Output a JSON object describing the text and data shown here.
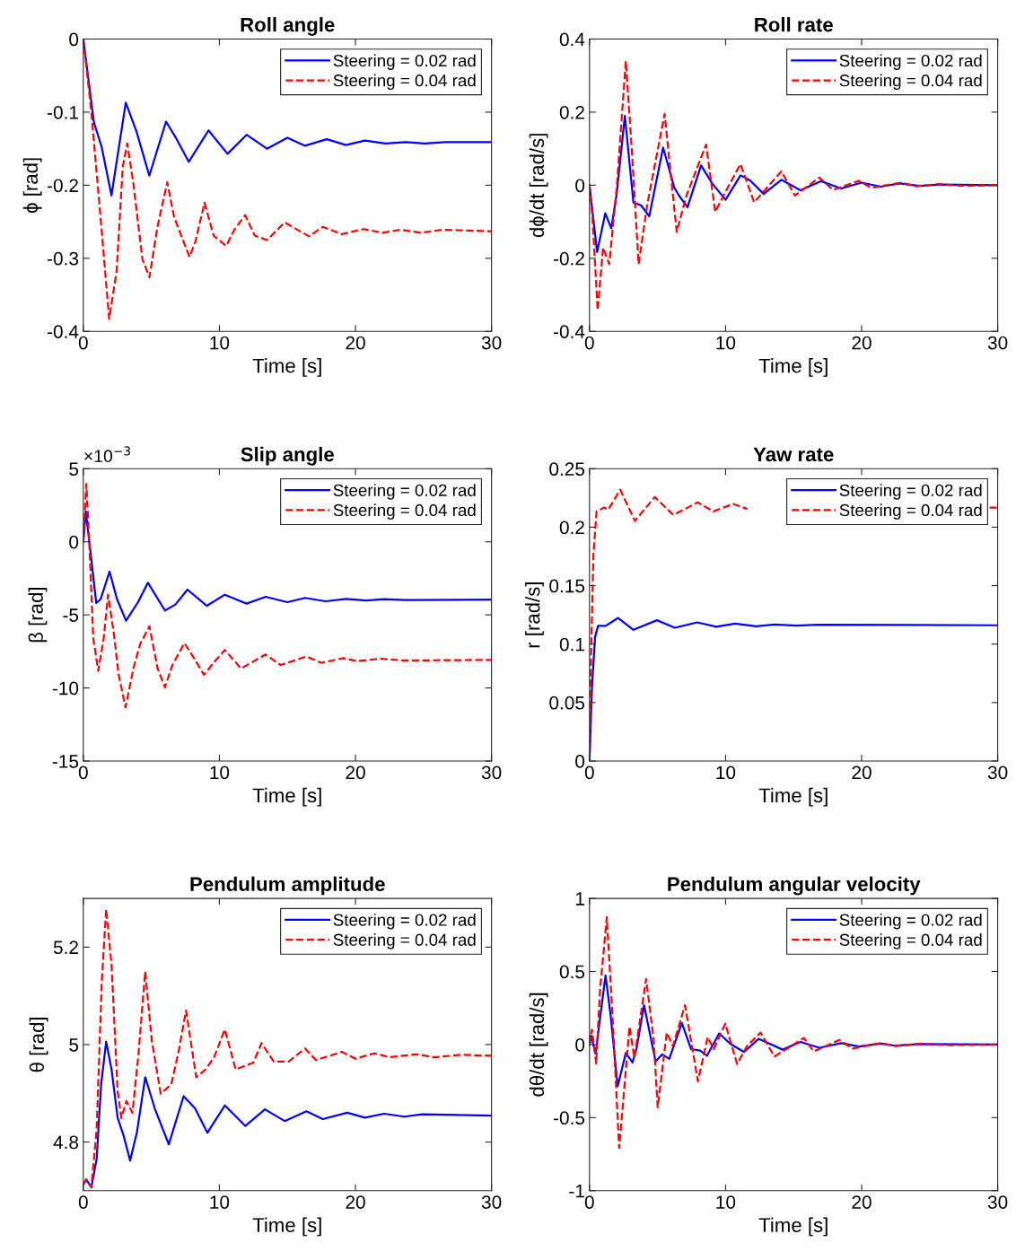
{
  "chart_data": [
    {
      "type": "line",
      "title": "Roll angle",
      "xlabel": "Time [s]",
      "ylabel": "ϕ [rad]",
      "xlim": [
        0,
        30
      ],
      "xticks": [
        0,
        10,
        20,
        30
      ],
      "ylim": [
        -0.4,
        0
      ],
      "yticks": [
        -0.4,
        -0.3,
        -0.2,
        -0.1,
        0
      ],
      "legend": "top right",
      "series": [
        {
          "name": "Steering = 0.02 rad",
          "color": "#0000ff",
          "line_style": "solid",
          "x": [
            0,
            0.78,
            1.34,
            2.07,
            3.12,
            3.9,
            4.85,
            6.08,
            6.8,
            7.75,
            9.2,
            10.6,
            12.0,
            13.5,
            15.0,
            16.3,
            17.9,
            19.3,
            20.7,
            22.2,
            23.7,
            25.1,
            26.6,
            30
          ],
          "values": [
            0,
            -0.114,
            -0.147,
            -0.214,
            -0.087,
            -0.126,
            -0.187,
            -0.113,
            -0.135,
            -0.168,
            -0.125,
            -0.157,
            -0.131,
            -0.15,
            -0.135,
            -0.146,
            -0.137,
            -0.145,
            -0.139,
            -0.143,
            -0.141,
            -0.143,
            -0.141,
            -0.141
          ]
        },
        {
          "name": "Steering = 0.04 rad",
          "color": "#ff0000",
          "line_style": "dashed",
          "x": [
            0,
            0.56,
            1.23,
            1.9,
            2.45,
            2.9,
            3.23,
            3.67,
            4.34,
            4.86,
            5.46,
            6.17,
            6.68,
            7.8,
            8.24,
            8.91,
            9.58,
            10.5,
            11.1,
            11.9,
            12.6,
            13.5,
            14.8,
            16.6,
            17.6,
            19.0,
            20.6,
            22.0,
            23.3,
            24.8,
            26.4,
            30
          ],
          "values": [
            0,
            -0.094,
            -0.236,
            -0.383,
            -0.317,
            -0.175,
            -0.143,
            -0.196,
            -0.301,
            -0.326,
            -0.256,
            -0.196,
            -0.244,
            -0.298,
            -0.277,
            -0.224,
            -0.269,
            -0.283,
            -0.261,
            -0.241,
            -0.269,
            -0.275,
            -0.251,
            -0.27,
            -0.257,
            -0.267,
            -0.26,
            -0.265,
            -0.261,
            -0.265,
            -0.261,
            -0.263
          ]
        }
      ]
    },
    {
      "type": "line",
      "title": "Roll rate",
      "xlabel": "Time [s]",
      "ylabel": "dϕ/dt [rad/s]",
      "xlim": [
        0,
        30
      ],
      "xticks": [
        0,
        10,
        20,
        30
      ],
      "ylim": [
        -0.4,
        0.4
      ],
      "yticks": [
        -0.4,
        -0.2,
        0,
        0.2,
        0.4
      ],
      "legend": "top right",
      "series": [
        {
          "name": "Steering = 0.02 rad",
          "color": "#0000ff",
          "line_style": "solid",
          "x": [
            0,
            0.56,
            1.16,
            1.6,
            2.0,
            2.6,
            3.23,
            3.79,
            4.39,
            5.41,
            6.24,
            6.57,
            7.2,
            8.2,
            9.02,
            10.0,
            11.1,
            11.8,
            12.8,
            14.1,
            15.5,
            17.0,
            18.5,
            20.0,
            21.4,
            22.8,
            24.3,
            25.8,
            30
          ],
          "values": [
            0,
            -0.183,
            -0.077,
            -0.118,
            -0.024,
            0.19,
            -0.048,
            -0.055,
            -0.085,
            0.103,
            -0.007,
            -0.028,
            -0.06,
            0.054,
            0.005,
            -0.04,
            0.027,
            0.013,
            -0.024,
            0.015,
            -0.014,
            0.011,
            -0.009,
            0.007,
            -0.004,
            0.005,
            -0.002,
            0.002,
            0
          ]
        },
        {
          "name": "Steering = 0.04 rad",
          "color": "#ff0000",
          "line_style": "dashed",
          "x": [
            0,
            0.22,
            0.6,
            1.0,
            1.45,
            2.0,
            2.67,
            3.12,
            3.61,
            4.23,
            5.52,
            6.41,
            7.13,
            8.57,
            9.24,
            10.1,
            11.1,
            12.1,
            14.1,
            15.1,
            16.9,
            17.9,
            19.8,
            20.7,
            22.9,
            24.0,
            25.6,
            27.4,
            30
          ],
          "values": [
            0,
            -0.089,
            -0.342,
            -0.171,
            -0.216,
            -0.007,
            0.34,
            0.091,
            -0.216,
            -0.056,
            0.195,
            -0.128,
            -0.028,
            0.111,
            -0.073,
            -0.011,
            0.058,
            -0.047,
            0.038,
            -0.028,
            0.021,
            -0.013,
            0.012,
            -0.007,
            0.007,
            -0.003,
            0.003,
            -0.002,
            0
          ]
        }
      ]
    },
    {
      "type": "line",
      "title": "Slip angle",
      "xlabel": "Time [s]",
      "ylabel": "β [rad]",
      "xlim": [
        0,
        30
      ],
      "xticks": [
        0,
        10,
        20,
        30
      ],
      "ylim": [
        -15,
        5
      ],
      "yticks": [
        -15,
        -10,
        -5,
        0,
        5
      ],
      "legend": "top right",
      "annotations": [
        "×10$^{−3}$"
      ],
      "series": [
        {
          "name": "Steering = 0.02 rad",
          "color": "#0000ff",
          "line_style": "solid",
          "x": [
            0,
            0.18,
            0.5,
            0.95,
            1.27,
            1.93,
            2.48,
            3.14,
            4.02,
            4.75,
            6.0,
            6.77,
            7.65,
            9.08,
            10.4,
            12.0,
            13.4,
            15.0,
            16.3,
            17.8,
            19.3,
            20.8,
            22.1,
            23.7,
            30
          ],
          "values": [
            0,
            2.1,
            -0.45,
            -4.19,
            -3.93,
            -2.04,
            -3.93,
            -5.4,
            -4.13,
            -2.8,
            -4.7,
            -4.29,
            -3.27,
            -4.38,
            -3.62,
            -4.23,
            -3.76,
            -4.13,
            -3.84,
            -4.07,
            -3.91,
            -4.01,
            -3.93,
            -3.99,
            -3.95
          ]
        },
        {
          "name": "Steering = 0.04 rad",
          "color": "#ff0000",
          "line_style": "dashed",
          "x": [
            0,
            0.22,
            0.44,
            0.73,
            1.1,
            1.5,
            1.82,
            2.26,
            2.59,
            3.1,
            3.69,
            4.18,
            4.86,
            5.45,
            6.0,
            6.55,
            7.43,
            8.31,
            8.86,
            9.63,
            10.4,
            11.6,
            13.4,
            14.5,
            16.4,
            17.5,
            19.1,
            20.1,
            21.9,
            23.5,
            30
          ],
          "values": [
            0,
            3.95,
            -0.04,
            -6.58,
            -8.83,
            -6.58,
            -3.62,
            -6.38,
            -9.04,
            -11.33,
            -8.63,
            -6.99,
            -5.77,
            -8.63,
            -9.96,
            -8.43,
            -6.93,
            -8.22,
            -9.1,
            -8.22,
            -7.4,
            -8.67,
            -7.71,
            -8.43,
            -7.85,
            -8.28,
            -7.96,
            -8.16,
            -8.0,
            -8.12,
            -8.08
          ]
        }
      ]
    },
    {
      "type": "line",
      "title": "Yaw rate",
      "xlabel": "Time [s]",
      "ylabel": "r [rad/s]",
      "xlim": [
        0,
        30
      ],
      "xticks": [
        0,
        10,
        20,
        30
      ],
      "ylim": [
        0,
        0.25
      ],
      "yticks": [
        0,
        0.05,
        0.1,
        0.15,
        0.2,
        0.25
      ],
      "legend": "top right",
      "series": [
        {
          "name": "Steering = 0.02 rad",
          "color": "#0000ff",
          "line_style": "solid",
          "x": [
            0,
            0.18,
            0.41,
            0.63,
            1.2,
            2.1,
            3.23,
            4.96,
            6.27,
            7.92,
            9.32,
            10.7,
            12.25,
            13.6,
            15.2,
            16.8,
            30
          ],
          "values": [
            0,
            0.0625,
            0.106,
            0.1156,
            0.1156,
            0.1224,
            0.1122,
            0.1204,
            0.114,
            0.1186,
            0.1148,
            0.1176,
            0.1153,
            0.1168,
            0.1158,
            0.1166,
            0.1161
          ]
        },
        {
          "name": "Steering = 0.04 rad",
          "color": "#ff0000",
          "line_style": "dashed",
          "x": [
            0,
            0.11,
            0.29,
            0.52,
            1.08,
            1.38,
            2.26,
            3.34,
            4.8,
            6.16,
            7.96,
            9.09,
            10.56,
            11.6,
            20,
            29.4,
            30
          ],
          "values": [
            0,
            0.088,
            0.177,
            0.2135,
            0.2168,
            0.215,
            0.2321,
            0.2054,
            0.2258,
            0.2105,
            0.2212,
            0.2135,
            0.2199,
            0.2156,
            null,
            0.2168,
            0.2168
          ]
        }
      ]
    },
    {
      "type": "line",
      "title": "Pendulum amplitude",
      "xlabel": "Time [s]",
      "ylabel": "θ [rad]",
      "xlim": [
        0,
        30
      ],
      "xticks": [
        0,
        10,
        20,
        30
      ],
      "ylim": [
        4.7,
        5.3
      ],
      "yticks": [
        4.8,
        5,
        5.2
      ],
      "legend": "top right",
      "series": [
        {
          "name": "Steering = 0.02 rad",
          "color": "#0000ff",
          "line_style": "solid",
          "x": [
            0,
            0.22,
            0.59,
            0.98,
            1.31,
            1.68,
            2.08,
            2.52,
            2.95,
            3.44,
            3.94,
            4.55,
            5.25,
            6.28,
            7.37,
            8.21,
            9.12,
            10.4,
            11.9,
            13.35,
            14.8,
            16.4,
            17.6,
            19.4,
            20.7,
            22.1,
            23.6,
            24.9,
            30
          ],
          "values": [
            4.713,
            4.723,
            4.707,
            4.765,
            4.918,
            5.006,
            4.948,
            4.85,
            4.814,
            4.762,
            4.82,
            4.933,
            4.869,
            4.795,
            4.894,
            4.869,
            4.819,
            4.875,
            4.833,
            4.867,
            4.843,
            4.863,
            4.847,
            4.86,
            4.85,
            4.858,
            4.852,
            4.857,
            4.854
          ]
        },
        {
          "name": "Steering = 0.04 rad",
          "color": "#ff0000",
          "line_style": "dashed",
          "x": [
            0,
            0.22,
            0.59,
            0.98,
            1.36,
            1.68,
            2.08,
            2.52,
            2.8,
            3.17,
            3.61,
            4.05,
            4.55,
            5.03,
            5.69,
            6.46,
            7.0,
            7.55,
            8.3,
            8.96,
            9.6,
            10.4,
            11.2,
            12.5,
            13.1,
            14.0,
            15.1,
            16.3,
            17.1,
            19.0,
            20.0,
            21.4,
            22.5,
            24.5,
            25.8,
            27.8,
            30
          ],
          "values": [
            4.713,
            4.723,
            4.707,
            4.826,
            5.131,
            5.278,
            5.162,
            4.905,
            4.849,
            4.884,
            4.86,
            4.979,
            5.15,
            5.009,
            4.899,
            4.918,
            4.985,
            5.07,
            4.933,
            4.948,
            4.973,
            5.031,
            4.949,
            4.963,
            5.003,
            4.965,
            4.965,
            4.992,
            4.968,
            4.985,
            4.971,
            4.982,
            4.974,
            4.98,
            4.974,
            4.979,
            4.977
          ]
        }
      ]
    },
    {
      "type": "line",
      "title": "Pendulum angular velocity",
      "xlabel": "Time [s]",
      "ylabel": "dθ/dt [rad/s]",
      "xlim": [
        0,
        30
      ],
      "xticks": [
        0,
        10,
        20,
        30
      ],
      "ylim": [
        -1,
        1
      ],
      "yticks": [
        -1,
        -0.5,
        0,
        0.5,
        1
      ],
      "legend": "top right",
      "series": [
        {
          "name": "Steering = 0.02 rad",
          "color": "#0000ff",
          "line_style": "solid",
          "x": [
            0,
            0.11,
            0.45,
            0.71,
            1.18,
            1.56,
            2.07,
            2.67,
            3.16,
            3.45,
            4.01,
            4.86,
            5.35,
            5.86,
            6.79,
            7.46,
            8.13,
            8.64,
            9.53,
            10.36,
            11.36,
            12.43,
            14.2,
            15.5,
            16.9,
            18.5,
            19.8,
            21.4,
            22.5,
            24.3,
            30
          ],
          "values": [
            0,
            0.061,
            -0.061,
            0.133,
            0.473,
            0.194,
            -0.286,
            -0.057,
            -0.122,
            -0.031,
            0.269,
            -0.116,
            -0.067,
            -0.098,
            0.147,
            -0.031,
            -0.041,
            -0.076,
            0.076,
            0.004,
            -0.051,
            0.039,
            -0.035,
            0.018,
            -0.022,
            0.01,
            -0.014,
            0.006,
            -0.008,
            0.004,
            0
          ]
        },
        {
          "name": "Steering = 0.04 rad",
          "color": "#ff0000",
          "line_style": "dashed",
          "x": [
            0,
            0.18,
            0.49,
            0.78,
            1.27,
            1.67,
            2.18,
            2.56,
            2.94,
            3.3,
            4.16,
            4.72,
            5.01,
            5.68,
            6.13,
            7.02,
            7.97,
            8.69,
            9.13,
            9.98,
            10.85,
            11.58,
            12.58,
            13.59,
            15.76,
            16.48,
            18.37,
            19.33,
            21.38,
            22.5,
            24.3,
            26.5,
            30
          ],
          "values": [
            0,
            0.102,
            -0.129,
            0.378,
            0.871,
            0.235,
            -0.708,
            -0.296,
            0.122,
            -0.092,
            0.449,
            0.031,
            -0.429,
            0.082,
            -0.01,
            0.269,
            -0.251,
            0.051,
            -0.031,
            0.143,
            -0.133,
            -0.01,
            0.082,
            -0.082,
            0.045,
            -0.047,
            0.031,
            -0.027,
            0.01,
            -0.01,
            0.006,
            -0.004,
            0
          ]
        }
      ]
    }
  ]
}
